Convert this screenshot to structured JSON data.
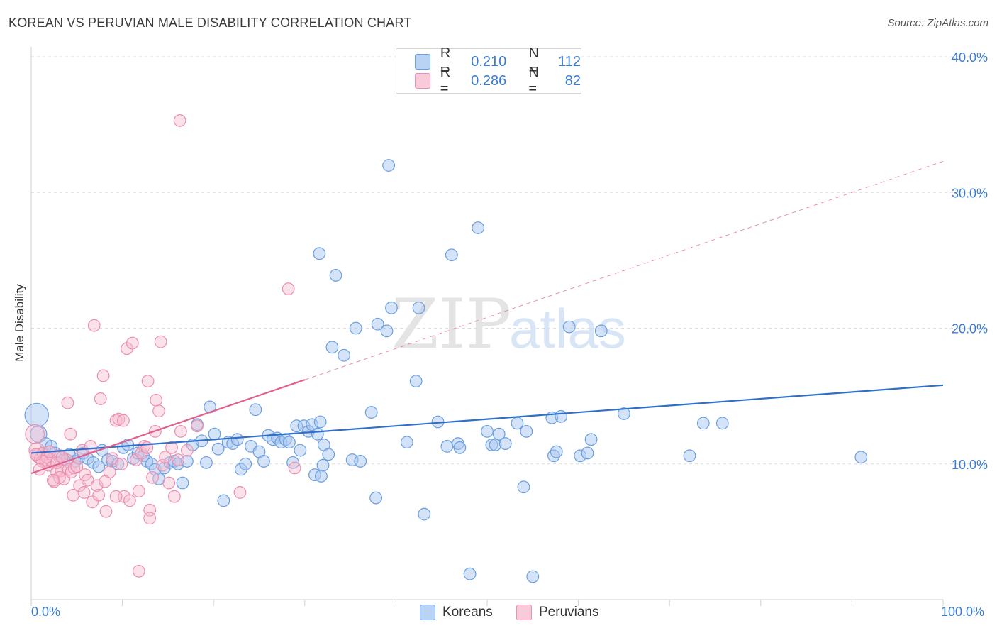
{
  "title": "KOREAN VS PERUVIAN MALE DISABILITY CORRELATION CHART",
  "source": "Source: ZipAtlas.com",
  "watermark": {
    "zip": "ZIP",
    "atlas": "atlas"
  },
  "legend_top": [
    {
      "r_label": "R =",
      "r_value": "0.210",
      "n_label": "N =",
      "n_value": "112"
    },
    {
      "r_label": "R =",
      "r_value": "0.286",
      "n_label": "N =",
      "n_value": "82"
    }
  ],
  "legend_bottom": [
    "Koreans",
    "Peruvians"
  ],
  "x_min_label": "0.0%",
  "x_max_label": "100.0%",
  "colors": {
    "korean_fill": "#a9c8f0",
    "korean_stroke": "#6a9fe0",
    "korean_line": "#2f6fcc",
    "peruvian_fill": "#f7bcd0",
    "peruvian_stroke": "#ec8fb0",
    "peruvian_line": "#e0608a",
    "tick_text": "#3a7bd5",
    "grid": "#dcdcdc"
  },
  "chart_data": {
    "type": "scatter",
    "title": "KOREAN VS PERUVIAN MALE DISABILITY CORRELATION CHART",
    "xlabel": "",
    "ylabel": "Male Disability",
    "xlim": [
      0,
      100
    ],
    "ylim": [
      0,
      40
    ],
    "y_ticks": [
      {
        "value": 10,
        "label": "10.0%"
      },
      {
        "value": 20,
        "label": "20.0%"
      },
      {
        "value": 30,
        "label": "30.0%"
      },
      {
        "value": 40,
        "label": "40.0%"
      }
    ],
    "series": [
      {
        "name": "Koreans",
        "r": 0.21,
        "n": 112,
        "trend": {
          "x": [
            0,
            100
          ],
          "y": [
            10.8,
            15.8
          ]
        },
        "points": [
          [
            0.6,
            13.6,
            2.0
          ],
          [
            0.8,
            12.2,
            1.4
          ],
          [
            1.6,
            11.5,
            1
          ],
          [
            2.2,
            11.3,
            1
          ],
          [
            2.6,
            10.8,
            1
          ],
          [
            3.2,
            10.6,
            1
          ],
          [
            3.6,
            10.3,
            1
          ],
          [
            4.2,
            10.7,
            1
          ],
          [
            4.8,
            10.2,
            1
          ],
          [
            5.2,
            10.4,
            1
          ],
          [
            5.7,
            10.8,
            1
          ],
          [
            6.2,
            10.4,
            1
          ],
          [
            6.8,
            10.1,
            1
          ],
          [
            7.4,
            9.8,
            1
          ],
          [
            7.8,
            11.0,
            1
          ],
          [
            8.4,
            10.3,
            1
          ],
          [
            8.9,
            10.2,
            1
          ],
          [
            9.5,
            10.0,
            1
          ],
          [
            10.1,
            11.2,
            1
          ],
          [
            10.6,
            11.4,
            1
          ],
          [
            11.2,
            10.4,
            1
          ],
          [
            11.7,
            10.8,
            1
          ],
          [
            12.3,
            10.6,
            1
          ],
          [
            12.7,
            10.2,
            1
          ],
          [
            13.2,
            10.0,
            1
          ],
          [
            13.6,
            9.6,
            1
          ],
          [
            14.0,
            8.9,
            1
          ],
          [
            14.6,
            9.7,
            1
          ],
          [
            15.2,
            10.1,
            1
          ],
          [
            15.7,
            10.2,
            1
          ],
          [
            16.1,
            10.0,
            1
          ],
          [
            16.6,
            8.6,
            1
          ],
          [
            17.1,
            10.2,
            1
          ],
          [
            17.7,
            11.4,
            1
          ],
          [
            18.2,
            12.9,
            1
          ],
          [
            18.7,
            11.7,
            1
          ],
          [
            19.2,
            10.1,
            1
          ],
          [
            19.6,
            14.2,
            1
          ],
          [
            20.1,
            12.2,
            1
          ],
          [
            20.5,
            11.1,
            1
          ],
          [
            21.1,
            7.3,
            1
          ],
          [
            21.6,
            11.6,
            1
          ],
          [
            22.1,
            11.5,
            1
          ],
          [
            22.6,
            11.8,
            1
          ],
          [
            23.0,
            9.6,
            1
          ],
          [
            23.5,
            10.0,
            1
          ],
          [
            24.1,
            11.3,
            1
          ],
          [
            24.6,
            14.0,
            1
          ],
          [
            25.0,
            10.9,
            1
          ],
          [
            25.5,
            10.2,
            1
          ],
          [
            26.0,
            12.1,
            1
          ],
          [
            26.5,
            11.8,
            1
          ],
          [
            27.0,
            11.9,
            1
          ],
          [
            27.4,
            11.6,
            1
          ],
          [
            27.9,
            11.8,
            1
          ],
          [
            28.3,
            11.6,
            1
          ],
          [
            28.7,
            10.1,
            1
          ],
          [
            29.1,
            12.8,
            1
          ],
          [
            29.5,
            11.0,
            1
          ],
          [
            29.9,
            12.8,
            1
          ],
          [
            30.4,
            12.4,
            1
          ],
          [
            30.8,
            12.9,
            1
          ],
          [
            31.1,
            9.2,
            1
          ],
          [
            31.4,
            12.2,
            1
          ],
          [
            31.7,
            13.1,
            1
          ],
          [
            32.1,
            11.4,
            1
          ],
          [
            32.6,
            10.7,
            1
          ],
          [
            32.0,
            9.9,
            1
          ],
          [
            31.8,
            9.1,
            1
          ],
          [
            31.6,
            25.5,
            1
          ],
          [
            33.0,
            18.6,
            1
          ],
          [
            33.4,
            23.9,
            1
          ],
          [
            34.3,
            18.0,
            1
          ],
          [
            35.6,
            20.0,
            1
          ],
          [
            35.2,
            10.3,
            1
          ],
          [
            36.1,
            10.2,
            1
          ],
          [
            37.3,
            13.8,
            1
          ],
          [
            37.8,
            7.5,
            1
          ],
          [
            38.0,
            20.3,
            1
          ],
          [
            39.0,
            19.8,
            1
          ],
          [
            39.2,
            32.0,
            1
          ],
          [
            39.5,
            21.5,
            1
          ],
          [
            41.2,
            11.6,
            1
          ],
          [
            42.2,
            16.1,
            1
          ],
          [
            42.5,
            21.5,
            1
          ],
          [
            43.1,
            6.3,
            1
          ],
          [
            44.6,
            13.1,
            1
          ],
          [
            45.6,
            11.3,
            1
          ],
          [
            46.1,
            25.4,
            1
          ],
          [
            46.8,
            11.5,
            1
          ],
          [
            47.0,
            11.2,
            1
          ],
          [
            48.1,
            1.9,
            1
          ],
          [
            49.0,
            27.4,
            1
          ],
          [
            50.0,
            12.4,
            1
          ],
          [
            50.5,
            11.4,
            1
          ],
          [
            50.9,
            11.4,
            1
          ],
          [
            51.3,
            12.2,
            1
          ],
          [
            52.0,
            11.5,
            1
          ],
          [
            53.3,
            13.0,
            1
          ],
          [
            54.0,
            8.3,
            1
          ],
          [
            54.3,
            12.4,
            1
          ],
          [
            55.0,
            1.7,
            1
          ],
          [
            57.1,
            13.4,
            1
          ],
          [
            57.3,
            10.6,
            1
          ],
          [
            57.6,
            10.9,
            1
          ],
          [
            58.1,
            13.5,
            1
          ],
          [
            59.0,
            20.1,
            1
          ],
          [
            60.2,
            10.6,
            1
          ],
          [
            61.0,
            10.8,
            1
          ],
          [
            61.4,
            11.8,
            1
          ],
          [
            62.5,
            19.8,
            1
          ],
          [
            65.0,
            13.7,
            1
          ],
          [
            72.2,
            10.6,
            1
          ],
          [
            73.7,
            13.0,
            1
          ],
          [
            75.8,
            13.0,
            1
          ],
          [
            91.0,
            10.5,
            1
          ]
        ]
      },
      {
        "name": "Peruvians",
        "r": 0.286,
        "n": 82,
        "trend": {
          "x": [
            0,
            30
          ],
          "y": [
            9.3,
            16.2
          ]
        },
        "points": [
          [
            0.4,
            12.2,
            1.6
          ],
          [
            0.6,
            11.0,
            1.3
          ],
          [
            0.8,
            10.6,
            1.2
          ],
          [
            1.0,
            10.4,
            1
          ],
          [
            1.3,
            10.8,
            1
          ],
          [
            1.6,
            10.2,
            1
          ],
          [
            1.9,
            9.9,
            1
          ],
          [
            2.1,
            10.3,
            1
          ],
          [
            2.5,
            8.7,
            1
          ],
          [
            2.8,
            9.4,
            1
          ],
          [
            3.0,
            10.6,
            1
          ],
          [
            3.3,
            9.5,
            1
          ],
          [
            3.6,
            8.9,
            1
          ],
          [
            3.9,
            10.3,
            1
          ],
          [
            4.1,
            9.6,
            1
          ],
          [
            4.4,
            9.4,
            1
          ],
          [
            4.7,
            9.7,
            1
          ],
          [
            4.0,
            14.5,
            1
          ],
          [
            4.3,
            12.2,
            1
          ],
          [
            4.6,
            7.7,
            1
          ],
          [
            5.0,
            9.8,
            1
          ],
          [
            5.3,
            8.4,
            1
          ],
          [
            5.6,
            11.0,
            1
          ],
          [
            5.9,
            9.2,
            1
          ],
          [
            6.2,
            8.8,
            1
          ],
          [
            6.5,
            11.3,
            1
          ],
          [
            6.9,
            20.2,
            1
          ],
          [
            7.2,
            8.4,
            1
          ],
          [
            7.6,
            14.8,
            1
          ],
          [
            7.9,
            16.5,
            1
          ],
          [
            8.2,
            6.5,
            1
          ],
          [
            8.6,
            9.4,
            1
          ],
          [
            8.9,
            10.4,
            1
          ],
          [
            9.3,
            13.2,
            1
          ],
          [
            9.6,
            13.3,
            1
          ],
          [
            9.9,
            10.0,
            1
          ],
          [
            10.2,
            7.6,
            1
          ],
          [
            10.5,
            18.5,
            1
          ],
          [
            10.8,
            7.3,
            1
          ],
          [
            11.1,
            18.9,
            1
          ],
          [
            11.5,
            10.3,
            1
          ],
          [
            11.8,
            8.0,
            1
          ],
          [
            12.1,
            10.8,
            1
          ],
          [
            12.4,
            11.3,
            1
          ],
          [
            12.7,
            11.2,
            1
          ],
          [
            13.0,
            6.6,
            1
          ],
          [
            13.3,
            9.0,
            1
          ],
          [
            13.7,
            14.7,
            1
          ],
          [
            14.0,
            13.9,
            1
          ],
          [
            14.4,
            9.9,
            1
          ],
          [
            14.7,
            10.5,
            1
          ],
          [
            15.1,
            8.6,
            1
          ],
          [
            15.4,
            11.2,
            1
          ],
          [
            15.7,
            7.6,
            1
          ],
          [
            16.1,
            10.3,
            1
          ],
          [
            16.4,
            12.4,
            1
          ],
          [
            17.1,
            11.0,
            1
          ],
          [
            18.2,
            12.8,
            1
          ],
          [
            14.2,
            19.0,
            1
          ],
          [
            16.3,
            35.3,
            1
          ],
          [
            28.2,
            22.9,
            1
          ],
          [
            28.9,
            9.7,
            1
          ],
          [
            22.9,
            7.9,
            1
          ],
          [
            11.8,
            2.1,
            1
          ],
          [
            13.0,
            6.0,
            1
          ],
          [
            9.3,
            7.6,
            1
          ],
          [
            8.1,
            8.7,
            1
          ],
          [
            6.7,
            7.2,
            1
          ],
          [
            5.8,
            7.9,
            1
          ],
          [
            3.1,
            9.0,
            1
          ],
          [
            2.4,
            8.8,
            1
          ],
          [
            1.7,
            10.5,
            1
          ],
          [
            1.2,
            10.2,
            1
          ],
          [
            0.9,
            9.6,
            1
          ],
          [
            0.5,
            10.7,
            1
          ],
          [
            2.0,
            10.9,
            1
          ],
          [
            2.8,
            10.1,
            1
          ],
          [
            3.4,
            10.5,
            1
          ],
          [
            10.1,
            13.2,
            1
          ],
          [
            12.8,
            16.1,
            1
          ],
          [
            13.6,
            12.4,
            1
          ],
          [
            7.4,
            7.7,
            1
          ]
        ]
      }
    ]
  }
}
